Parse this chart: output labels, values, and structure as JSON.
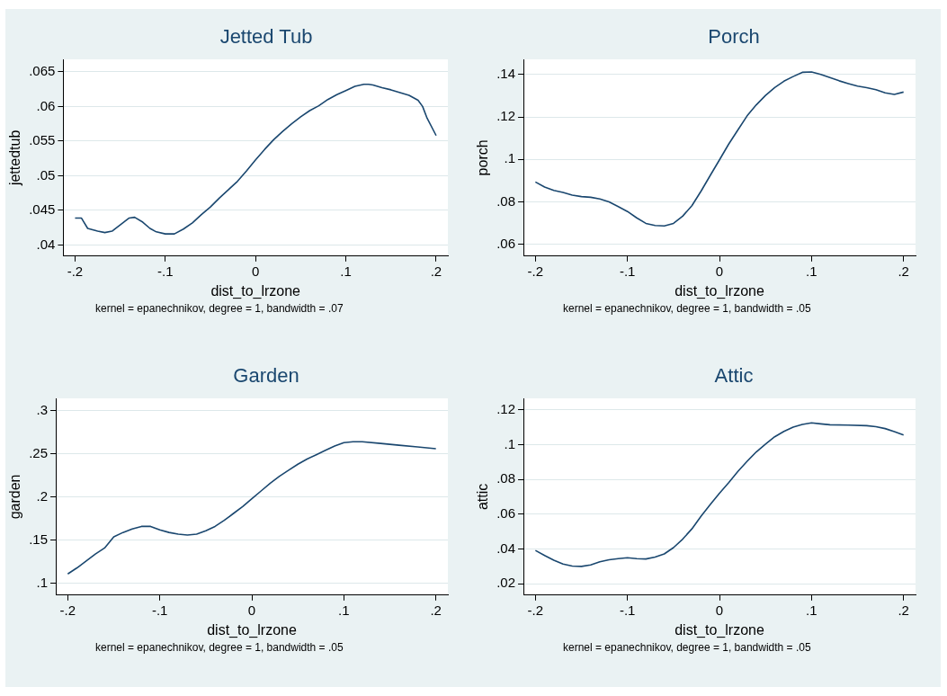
{
  "chart_data": [
    {
      "type": "line",
      "title": "Jetted Tub",
      "xlabel": "dist_to_lrzone",
      "ylabel": "jettedtub",
      "annotations": [
        "kernel = epanechnikov, degree = 1, bandwidth = .07"
      ],
      "grid": "y",
      "legend": false,
      "marker": "none",
      "line_style": "solid",
      "xlim": [
        -0.213,
        0.213
      ],
      "ylim": [
        0.0384,
        0.0668
      ],
      "xticks": [
        {
          "value": -0.2,
          "label": "-.2"
        },
        {
          "value": -0.1,
          "label": "-.1"
        },
        {
          "value": 0,
          "label": "0"
        },
        {
          "value": 0.1,
          "label": ".1"
        },
        {
          "value": 0.2,
          "label": ".2"
        }
      ],
      "yticks": [
        {
          "value": 0.04,
          "label": ".04"
        },
        {
          "value": 0.045,
          "label": ".045"
        },
        {
          "value": 0.05,
          "label": ".05"
        },
        {
          "value": 0.055,
          "label": ".055"
        },
        {
          "value": 0.06,
          "label": ".06"
        },
        {
          "value": 0.065,
          "label": ".065"
        }
      ],
      "series": [
        {
          "color": "#1a476f",
          "x": [
            -0.2,
            -0.193,
            -0.186,
            -0.175,
            -0.167,
            -0.159,
            -0.15,
            -0.14,
            -0.134,
            -0.125,
            -0.117,
            -0.11,
            -0.1,
            -0.09,
            -0.08,
            -0.07,
            -0.06,
            -0.05,
            -0.04,
            -0.03,
            -0.02,
            -0.01,
            0,
            0.01,
            0.02,
            0.03,
            0.04,
            0.05,
            0.06,
            0.07,
            0.08,
            0.09,
            0.1,
            0.11,
            0.12,
            0.125,
            0.13,
            0.14,
            0.15,
            0.16,
            0.17,
            0.18,
            0.185,
            0.19,
            0.2
          ],
          "values": [
            0.0439,
            0.0439,
            0.0424,
            0.042,
            0.0418,
            0.042,
            0.0429,
            0.0439,
            0.044,
            0.0433,
            0.0424,
            0.0419,
            0.0416,
            0.0416,
            0.0423,
            0.0432,
            0.0444,
            0.0455,
            0.0468,
            0.048,
            0.0492,
            0.0507,
            0.0523,
            0.0538,
            0.0552,
            0.0564,
            0.0575,
            0.0585,
            0.0594,
            0.0601,
            0.061,
            0.0617,
            0.0623,
            0.0629,
            0.0632,
            0.0632,
            0.0631,
            0.0627,
            0.0624,
            0.062,
            0.0616,
            0.0609,
            0.06,
            0.0583,
            0.0558
          ]
        }
      ]
    },
    {
      "type": "line",
      "title": "Porch",
      "xlabel": "dist_to_lrzone",
      "ylabel": "porch",
      "annotations": [
        "kernel = epanechnikov, degree = 1, bandwidth = .05"
      ],
      "grid": "y",
      "legend": false,
      "marker": "none",
      "line_style": "solid",
      "xlim": [
        -0.213,
        0.213
      ],
      "ylim": [
        0.0545,
        0.1471
      ],
      "xticks": [
        {
          "value": -0.2,
          "label": "-.2"
        },
        {
          "value": -0.1,
          "label": "-.1"
        },
        {
          "value": 0,
          "label": "0"
        },
        {
          "value": 0.1,
          "label": ".1"
        },
        {
          "value": 0.2,
          "label": ".2"
        }
      ],
      "yticks": [
        {
          "value": 0.06,
          "label": ".06"
        },
        {
          "value": 0.08,
          "label": ".08"
        },
        {
          "value": 0.1,
          "label": ".1"
        },
        {
          "value": 0.12,
          "label": ".12"
        },
        {
          "value": 0.14,
          "label": ".14"
        }
      ],
      "series": [
        {
          "color": "#1a476f",
          "x": [
            -0.2,
            -0.19,
            -0.18,
            -0.17,
            -0.16,
            -0.15,
            -0.14,
            -0.13,
            -0.12,
            -0.11,
            -0.1,
            -0.09,
            -0.08,
            -0.07,
            -0.06,
            -0.05,
            -0.04,
            -0.03,
            -0.02,
            -0.01,
            0,
            0.01,
            0.02,
            0.03,
            0.04,
            0.05,
            0.06,
            0.07,
            0.08,
            0.09,
            0.1,
            0.11,
            0.12,
            0.13,
            0.14,
            0.15,
            0.16,
            0.17,
            0.18,
            0.19,
            0.2
          ],
          "values": [
            0.0894,
            0.087,
            0.0854,
            0.0845,
            0.0832,
            0.0825,
            0.0822,
            0.0814,
            0.08,
            0.0778,
            0.0755,
            0.0725,
            0.0699,
            0.0689,
            0.0687,
            0.0699,
            0.0733,
            0.0782,
            0.0851,
            0.0925,
            0.0998,
            0.1072,
            0.1139,
            0.1205,
            0.1257,
            0.1301,
            0.1338,
            0.1368,
            0.139,
            0.141,
            0.1412,
            0.14,
            0.1385,
            0.137,
            0.1357,
            0.1345,
            0.1338,
            0.1328,
            0.1313,
            0.1306,
            0.1317
          ]
        }
      ]
    },
    {
      "type": "line",
      "title": "Garden",
      "xlabel": "dist_to_lrzone",
      "ylabel": "garden",
      "annotations": [
        "kernel = epanechnikov, degree = 1, bandwidth = .05"
      ],
      "grid": "y",
      "legend": false,
      "marker": "none",
      "line_style": "solid",
      "xlim": [
        -0.213,
        0.213
      ],
      "ylim": [
        0.0865,
        0.3142
      ],
      "xticks": [
        {
          "value": -0.2,
          "label": "-.2"
        },
        {
          "value": -0.1,
          "label": "-.1"
        },
        {
          "value": 0,
          "label": "0"
        },
        {
          "value": 0.1,
          "label": ".1"
        },
        {
          "value": 0.2,
          "label": ".2"
        }
      ],
      "yticks": [
        {
          "value": 0.1,
          "label": ".1"
        },
        {
          "value": 0.15,
          "label": ".15"
        },
        {
          "value": 0.2,
          "label": ".2"
        },
        {
          "value": 0.25,
          "label": ".25"
        },
        {
          "value": 0.3,
          "label": ".3"
        }
      ],
      "series": [
        {
          "color": "#1a476f",
          "x": [
            -0.2,
            -0.19,
            -0.18,
            -0.17,
            -0.16,
            -0.15,
            -0.14,
            -0.13,
            -0.12,
            -0.11,
            -0.1,
            -0.09,
            -0.08,
            -0.07,
            -0.06,
            -0.05,
            -0.04,
            -0.03,
            -0.02,
            -0.01,
            0,
            0.01,
            0.02,
            0.03,
            0.04,
            0.05,
            0.06,
            0.07,
            0.08,
            0.09,
            0.1,
            0.11,
            0.12,
            0.14,
            0.16,
            0.18,
            0.2
          ],
          "values": [
            0.111,
            0.118,
            0.126,
            0.134,
            0.141,
            0.154,
            0.159,
            0.163,
            0.166,
            0.166,
            0.162,
            0.159,
            0.157,
            0.156,
            0.157,
            0.161,
            0.166,
            0.173,
            0.181,
            0.189,
            0.198,
            0.207,
            0.216,
            0.224,
            0.231,
            0.238,
            0.244,
            0.249,
            0.254,
            0.259,
            0.263,
            0.264,
            0.264,
            0.262,
            0.26,
            0.258,
            0.256
          ]
        }
      ]
    },
    {
      "type": "line",
      "title": "Attic",
      "xlabel": "dist_to_lrzone",
      "ylabel": "attic",
      "annotations": [
        "kernel = epanechnikov, degree = 1, bandwidth = .05"
      ],
      "grid": "y",
      "legend": false,
      "marker": "none",
      "line_style": "solid",
      "xlim": [
        -0.213,
        0.213
      ],
      "ylim": [
        0.0135,
        0.1267
      ],
      "xticks": [
        {
          "value": -0.2,
          "label": "-.2"
        },
        {
          "value": -0.1,
          "label": "-.1"
        },
        {
          "value": 0,
          "label": "0"
        },
        {
          "value": 0.1,
          "label": ".1"
        },
        {
          "value": 0.2,
          "label": ".2"
        }
      ],
      "yticks": [
        {
          "value": 0.02,
          "label": ".02"
        },
        {
          "value": 0.04,
          "label": ".04"
        },
        {
          "value": 0.06,
          "label": ".06"
        },
        {
          "value": 0.08,
          "label": ".08"
        },
        {
          "value": 0.1,
          "label": ".1"
        },
        {
          "value": 0.12,
          "label": ".12"
        }
      ],
      "series": [
        {
          "color": "#1a476f",
          "x": [
            -0.2,
            -0.19,
            -0.18,
            -0.17,
            -0.16,
            -0.15,
            -0.14,
            -0.13,
            -0.12,
            -0.11,
            -0.1,
            -0.09,
            -0.08,
            -0.07,
            -0.06,
            -0.05,
            -0.04,
            -0.03,
            -0.02,
            -0.01,
            0,
            0.01,
            0.02,
            0.03,
            0.04,
            0.05,
            0.06,
            0.07,
            0.08,
            0.09,
            0.1,
            0.11,
            0.12,
            0.14,
            0.16,
            0.17,
            0.18,
            0.19,
            0.2
          ],
          "values": [
            0.0392,
            0.0363,
            0.0336,
            0.0314,
            0.0302,
            0.03,
            0.0309,
            0.0327,
            0.0338,
            0.0345,
            0.035,
            0.0345,
            0.0343,
            0.0354,
            0.0372,
            0.0408,
            0.0457,
            0.0516,
            0.0589,
            0.0656,
            0.0721,
            0.0782,
            0.0847,
            0.0905,
            0.0959,
            0.1004,
            0.1046,
            0.1077,
            0.1101,
            0.1117,
            0.1126,
            0.112,
            0.1115,
            0.1113,
            0.111,
            0.1104,
            0.1093,
            0.1076,
            0.1056
          ]
        }
      ]
    }
  ]
}
